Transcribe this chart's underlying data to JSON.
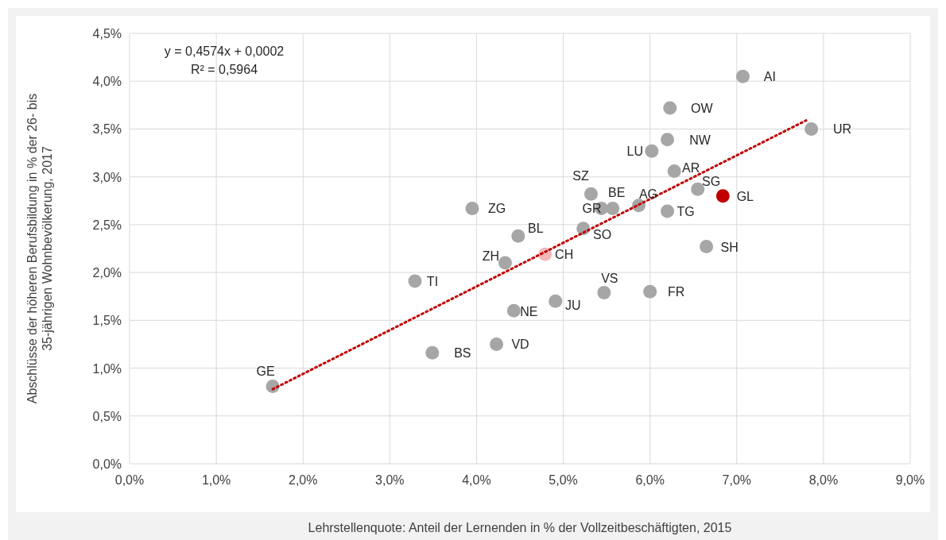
{
  "chart_data": {
    "type": "scatter",
    "xlabel": "Lehrstellenquote: Anteil der Lernenden in % der Vollzeitbeschäftigten, 2015",
    "ylabel": "Abschlüsse der höheren Berufsbildung in % der 26- bis\n35-jährigen Wohnbevölkerung, 2017",
    "xlim": [
      0,
      9
    ],
    "ylim": [
      0,
      4.5
    ],
    "xticks": [
      {
        "value": 0,
        "label": "0,0%"
      },
      {
        "value": 1,
        "label": "1,0%"
      },
      {
        "value": 2,
        "label": "2,0%"
      },
      {
        "value": 3,
        "label": "3,0%"
      },
      {
        "value": 4,
        "label": "4,0%"
      },
      {
        "value": 5,
        "label": "5,0%"
      },
      {
        "value": 6,
        "label": "6,0%"
      },
      {
        "value": 7,
        "label": "7,0%"
      },
      {
        "value": 8,
        "label": "8,0%"
      },
      {
        "value": 9,
        "label": "9,0%"
      }
    ],
    "yticks": [
      {
        "value": 0,
        "label": "0,0%"
      },
      {
        "value": 0.5,
        "label": "0,5%"
      },
      {
        "value": 1,
        "label": "1,0%"
      },
      {
        "value": 1.5,
        "label": "1,5%"
      },
      {
        "value": 2,
        "label": "2,0%"
      },
      {
        "value": 2.5,
        "label": "2,5%"
      },
      {
        "value": 3,
        "label": "3,0%"
      },
      {
        "value": 3.5,
        "label": "3,5%"
      },
      {
        "value": 4,
        "label": "4,0%"
      },
      {
        "value": 4.5,
        "label": "4,5%"
      }
    ],
    "grid": true,
    "marker": "circle",
    "series": [
      {
        "color": "#a6a6a6",
        "x": [
          1.65,
          3.29,
          3.49,
          3.95,
          4.33,
          4.43,
          4.48,
          4.23,
          4.91,
          5.23,
          5.32,
          5.44,
          5.57,
          5.47,
          5.87,
          6.0,
          6.02,
          6.2,
          6.2,
          6.23,
          6.28,
          6.55,
          6.65,
          7.07,
          7.86
        ],
        "values": [
          0.81,
          1.91,
          1.16,
          2.67,
          2.1,
          1.6,
          2.38,
          1.25,
          1.7,
          2.46,
          2.82,
          2.67,
          2.67,
          1.79,
          2.7,
          1.8,
          3.27,
          2.64,
          3.39,
          3.72,
          3.06,
          2.87,
          2.27,
          4.05,
          3.5
        ]
      },
      {
        "color": "#f2b8b8",
        "x": [
          4.79
        ],
        "values": [
          2.19
        ]
      },
      {
        "color": "#c00000",
        "x": [
          6.84
        ],
        "values": [
          2.8
        ]
      },
      {
        "type": "line",
        "color": "#c00000",
        "line_style": "dotted",
        "marker": "none",
        "x": [
          1.65,
          7.8
        ],
        "values": [
          0.78,
          3.59
        ]
      }
    ],
    "annotations": [
      {
        "text": "GE",
        "x": 1.65,
        "y": 0.81
      },
      {
        "text": "TI",
        "x": 3.29,
        "y": 1.91
      },
      {
        "text": "BS",
        "x": 3.49,
        "y": 1.16
      },
      {
        "text": "ZG",
        "x": 3.95,
        "y": 2.67
      },
      {
        "text": "ZH",
        "x": 4.33,
        "y": 2.1
      },
      {
        "text": "NE",
        "x": 4.43,
        "y": 1.6
      },
      {
        "text": "BL",
        "x": 4.48,
        "y": 2.38
      },
      {
        "text": "VD",
        "x": 4.23,
        "y": 1.25
      },
      {
        "text": "CH",
        "x": 4.79,
        "y": 2.19
      },
      {
        "text": "JU",
        "x": 4.91,
        "y": 1.7
      },
      {
        "text": "SO",
        "x": 5.23,
        "y": 2.46
      },
      {
        "text": "SZ",
        "x": 5.32,
        "y": 2.82
      },
      {
        "text": "GR",
        "x": 5.44,
        "y": 2.67
      },
      {
        "text": "BE",
        "x": 5.57,
        "y": 2.67
      },
      {
        "text": "VS",
        "x": 5.47,
        "y": 1.79
      },
      {
        "text": "AG",
        "x": 5.87,
        "y": 2.7
      },
      {
        "text": "FR",
        "x": 6.0,
        "y": 1.8
      },
      {
        "text": "LU",
        "x": 6.02,
        "y": 3.27
      },
      {
        "text": "TG",
        "x": 6.2,
        "y": 2.64
      },
      {
        "text": "NW",
        "x": 6.2,
        "y": 3.39
      },
      {
        "text": "OW",
        "x": 6.23,
        "y": 3.72
      },
      {
        "text": "AR",
        "x": 6.28,
        "y": 3.06
      },
      {
        "text": "SG",
        "x": 6.55,
        "y": 2.87
      },
      {
        "text": "SH",
        "x": 6.65,
        "y": 2.27
      },
      {
        "text": "GL",
        "x": 6.84,
        "y": 2.8
      },
      {
        "text": "AI",
        "x": 7.07,
        "y": 4.05
      },
      {
        "text": "UR",
        "x": 7.86,
        "y": 3.5
      },
      "y = 0,4574x + 0,0002",
      "R² = 0,5964"
    ]
  }
}
